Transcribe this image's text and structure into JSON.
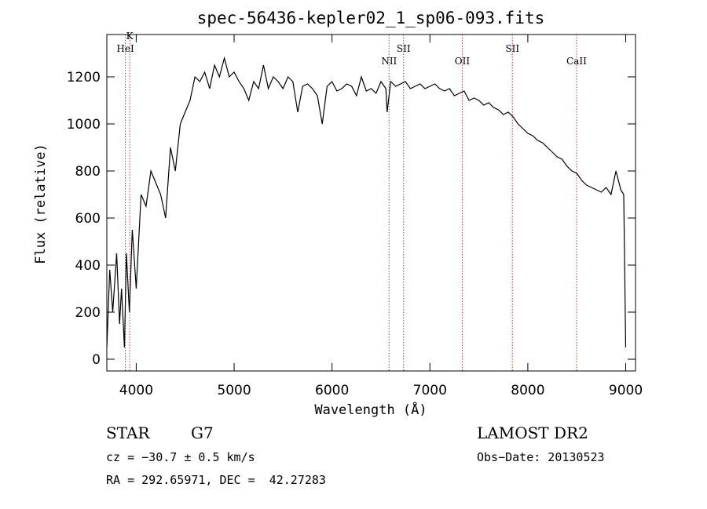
{
  "chart_data": {
    "type": "line",
    "title": "spec-56436-kepler02_1_sp06-093.fits",
    "xlabel": "Wavelength (Å)",
    "ylabel": "Flux (relative)",
    "xlim": [
      3700,
      9100
    ],
    "ylim": [
      -50,
      1380
    ],
    "xticks": [
      4000,
      5000,
      6000,
      7000,
      8000,
      9000
    ],
    "yticks": [
      0,
      200,
      400,
      600,
      800,
      1000,
      1200
    ],
    "grid": false,
    "series": [
      {
        "color": "#000000",
        "x": [
          3700,
          3730,
          3760,
          3800,
          3830,
          3850,
          3880,
          3900,
          3930,
          3960,
          4000,
          4050,
          4100,
          4150,
          4200,
          4250,
          4300,
          4350,
          4400,
          4450,
          4500,
          4550,
          4600,
          4650,
          4700,
          4750,
          4800,
          4850,
          4900,
          4950,
          5000,
          5050,
          5100,
          5150,
          5200,
          5250,
          5300,
          5350,
          5400,
          5450,
          5500,
          5550,
          5600,
          5650,
          5700,
          5750,
          5800,
          5850,
          5900,
          5950,
          6000,
          6050,
          6100,
          6150,
          6200,
          6250,
          6300,
          6350,
          6400,
          6450,
          6500,
          6550,
          6563,
          6600,
          6650,
          6700,
          6750,
          6800,
          6850,
          6900,
          6950,
          7000,
          7050,
          7100,
          7150,
          7200,
          7250,
          7300,
          7350,
          7400,
          7450,
          7500,
          7550,
          7600,
          7650,
          7700,
          7750,
          7800,
          7850,
          7900,
          7950,
          8000,
          8050,
          8100,
          8150,
          8200,
          8250,
          8300,
          8350,
          8400,
          8450,
          8500,
          8550,
          8600,
          8650,
          8700,
          8750,
          8800,
          8850,
          8900,
          8950,
          8980,
          9000
        ],
        "values": [
          50,
          380,
          200,
          450,
          150,
          300,
          50,
          450,
          200,
          550,
          300,
          700,
          650,
          800,
          750,
          700,
          600,
          900,
          800,
          1000,
          1050,
          1100,
          1200,
          1180,
          1220,
          1150,
          1250,
          1200,
          1280,
          1200,
          1220,
          1180,
          1150,
          1100,
          1180,
          1150,
          1250,
          1150,
          1200,
          1180,
          1150,
          1200,
          1180,
          1050,
          1160,
          1170,
          1150,
          1120,
          1000,
          1160,
          1180,
          1140,
          1150,
          1170,
          1160,
          1120,
          1200,
          1140,
          1150,
          1130,
          1180,
          1150,
          1050,
          1180,
          1160,
          1170,
          1180,
          1150,
          1160,
          1170,
          1150,
          1160,
          1170,
          1150,
          1140,
          1150,
          1120,
          1130,
          1140,
          1100,
          1110,
          1100,
          1080,
          1090,
          1070,
          1060,
          1040,
          1050,
          1030,
          1000,
          980,
          960,
          950,
          930,
          920,
          900,
          880,
          860,
          850,
          820,
          800,
          790,
          760,
          740,
          730,
          720,
          710,
          730,
          700,
          800,
          720,
          700,
          50
        ]
      }
    ],
    "lines": [
      {
        "label": "K",
        "x": 3934
      },
      {
        "label": "HeI",
        "x": 3889
      },
      {
        "label": "NII",
        "x": 6583
      },
      {
        "label": "SII",
        "x": 6731
      },
      {
        "label": "OII",
        "x": 7330
      },
      {
        "label": "SII",
        "x": 7842
      },
      {
        "label": "CaII",
        "x": 8498
      }
    ]
  },
  "info": {
    "class_label": "STAR",
    "subclass": "G7",
    "survey": "LAMOST DR2",
    "cz": "cz = −30.7 ± 0.5 km/s",
    "obs_date": "Obs−Date: 20130523",
    "coords": "RA = 292.65971, DEC =  42.27283"
  }
}
